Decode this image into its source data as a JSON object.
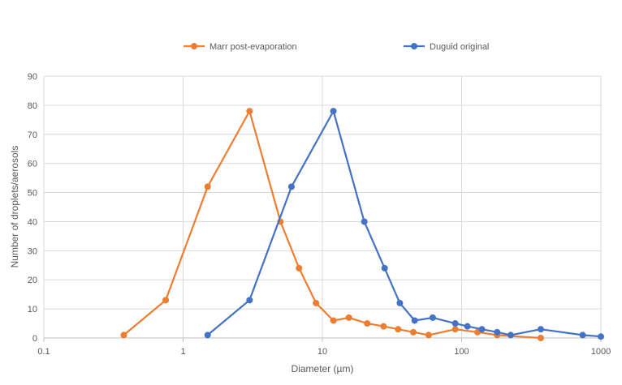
{
  "chart_data": {
    "type": "scatter",
    "title": "",
    "xlabel": "Diameter (µm)",
    "ylabel": "Number of droplets/aerosols",
    "xscale": "log",
    "xlim": [
      0.1,
      1000
    ],
    "ylim": [
      0,
      90
    ],
    "xticks": [
      0.1,
      1,
      10,
      100,
      1000
    ],
    "xtick_labels": [
      "0.1",
      "1",
      "10",
      "100",
      "1000"
    ],
    "yticks": [
      0,
      10,
      20,
      30,
      40,
      50,
      60,
      70,
      80,
      90
    ],
    "ytick_labels": [
      "0",
      "10",
      "20",
      "30",
      "40",
      "50",
      "60",
      "70",
      "80",
      "90"
    ],
    "grid": true,
    "legend_position": "top",
    "series": [
      {
        "name": "Marr post-evaporation",
        "color": "#ED7D31",
        "x": [
          0.375,
          0.75,
          1.5,
          3,
          5,
          6.8,
          9,
          12,
          15.5,
          21,
          27.5,
          35,
          45,
          58,
          90,
          130,
          180,
          370
        ],
        "y": [
          1,
          13,
          52,
          78,
          40,
          24,
          12,
          6,
          7,
          5,
          4,
          3,
          2,
          1,
          3,
          2,
          1,
          0
        ]
      },
      {
        "name": "Duguid original",
        "color": "#4472C4",
        "x": [
          1.5,
          3,
          6,
          12,
          20,
          28,
          36,
          46,
          62,
          90,
          110,
          140,
          180,
          225,
          370,
          740,
          1000
        ],
        "y": [
          1,
          13,
          52,
          78,
          40,
          24,
          12,
          6,
          7,
          5,
          4,
          3,
          2,
          1,
          3,
          1,
          0.5
        ]
      }
    ]
  }
}
